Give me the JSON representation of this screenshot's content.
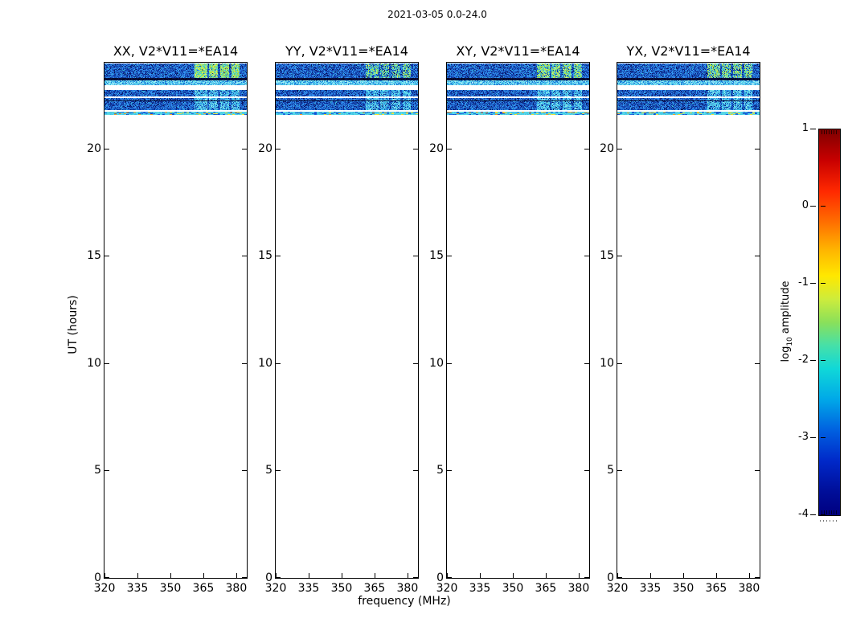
{
  "figure": {
    "title": "2021-03-05 0.0-24.0",
    "xlabel": "frequency (MHz)",
    "ylabel": "UT (hours)",
    "colorbar": {
      "label_prefix": "log",
      "label_sub": "10",
      "label_suffix": "amplitude",
      "tick_labels": [
        "1",
        "0",
        "-1",
        "-2",
        "-3",
        "-4"
      ]
    }
  },
  "chart_data": {
    "type": "heatmap",
    "title": "2021-03-05 0.0-24.0",
    "xlabel": "frequency (MHz)",
    "ylabel": "UT (hours)",
    "x_range_mhz": [
      320,
      384.8
    ],
    "x_ticks_mhz": [
      320,
      335,
      350,
      365,
      380
    ],
    "x_tick_labels": [
      "320",
      "335",
      "350",
      "365",
      "380"
    ],
    "y_range_hours": [
      0,
      24
    ],
    "y_ticks_hours": [
      0,
      5,
      10,
      15,
      20
    ],
    "y_tick_labels": [
      "0",
      "5",
      "10",
      "15",
      "20"
    ],
    "colorbar": {
      "label": "log10 amplitude",
      "tick_values": [
        1,
        0,
        -1,
        -2,
        -3,
        -4
      ],
      "value_range": [
        -4,
        1
      ],
      "colormap": "jet"
    },
    "panels": [
      {
        "title": "XX, V2*V11=*EA14",
        "seed": 11,
        "blob_yellow_fraction": 0.5
      },
      {
        "title": "YY, V2*V11=*EA14",
        "seed": 22,
        "blob_yellow_fraction": 0.18
      },
      {
        "title": "XY, V2*V11=*EA14",
        "seed": 33,
        "blob_yellow_fraction": 0.35
      },
      {
        "title": "YX, V2*V11=*EA14",
        "seed": 44,
        "blob_yellow_fraction": 0.3
      }
    ],
    "bright_cluster_ranges_mhz": [
      [
        361,
        366.5
      ],
      [
        367.5,
        371.5
      ],
      [
        372.5,
        376.5
      ],
      [
        377.5,
        381.5
      ]
    ],
    "bands_ut": [
      {
        "ut_start": 23.29,
        "ut_end": 23.96,
        "style": "noise",
        "highlight": "green_blobs",
        "approx_log10_amp": -3.0,
        "blob_log10_amp": -1.2
      },
      {
        "ut_start": 23.18,
        "ut_end": 23.29,
        "style": "dark",
        "highlight": null,
        "approx_log10_amp": -3.8
      },
      {
        "ut_start": 22.95,
        "ut_end": 23.18,
        "style": "bright_cyan",
        "highlight": null,
        "approx_log10_amp": -2.2
      },
      {
        "ut_start": 22.43,
        "ut_end": 22.73,
        "style": "noise",
        "highlight": "cyan_cols",
        "approx_log10_amp": -3.0
      },
      {
        "ut_start": 22.24,
        "ut_end": 22.35,
        "style": "noise",
        "highlight": "cyan_cols",
        "approx_log10_amp": -3.1
      },
      {
        "ut_start": 22.2,
        "ut_end": 22.24,
        "style": "dark",
        "highlight": null,
        "approx_log10_amp": -3.8
      },
      {
        "ut_start": 21.79,
        "ut_end": 22.2,
        "style": "noise",
        "highlight": "cyan_cols",
        "approx_log10_amp": -3.0
      },
      {
        "ut_start": 21.57,
        "ut_end": 21.72,
        "style": "thin_mixed",
        "highlight": null,
        "approx_log10_amp": -2.0
      }
    ],
    "no_data_ut_range": [
      0,
      21.57
    ]
  }
}
